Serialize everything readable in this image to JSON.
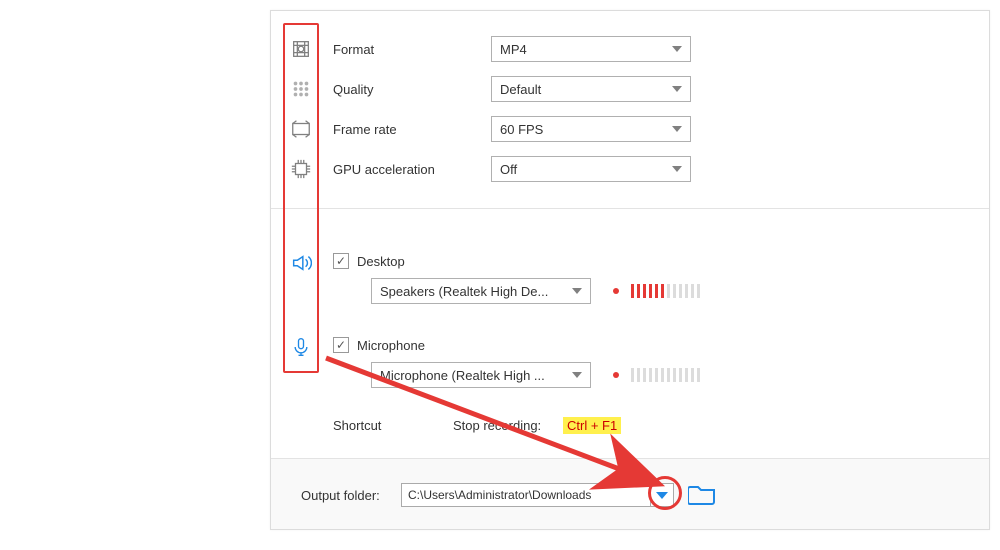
{
  "settings": {
    "format": {
      "label": "Format",
      "value": "MP4"
    },
    "quality": {
      "label": "Quality",
      "value": "Default"
    },
    "framerate": {
      "label": "Frame rate",
      "value": "60 FPS"
    },
    "gpu": {
      "label": "GPU acceleration",
      "value": "Off"
    }
  },
  "audio": {
    "desktop": {
      "label": "Desktop",
      "checked": true,
      "device": "Speakers (Realtek High De...",
      "meter_leds": 12,
      "meter_active": 6
    },
    "mic": {
      "label": "Microphone",
      "checked": true,
      "device": "Microphone (Realtek High ...",
      "meter_leds": 12,
      "meter_active": 0
    }
  },
  "shortcut": {
    "title": "Shortcut",
    "action": "Stop recording:",
    "key": "Ctrl + F1"
  },
  "output": {
    "label": "Output folder:",
    "path": "C:\\Users\\Administrator\\Downloads"
  },
  "colors": {
    "accent": "#1e88e5",
    "annot": "#e53935"
  }
}
